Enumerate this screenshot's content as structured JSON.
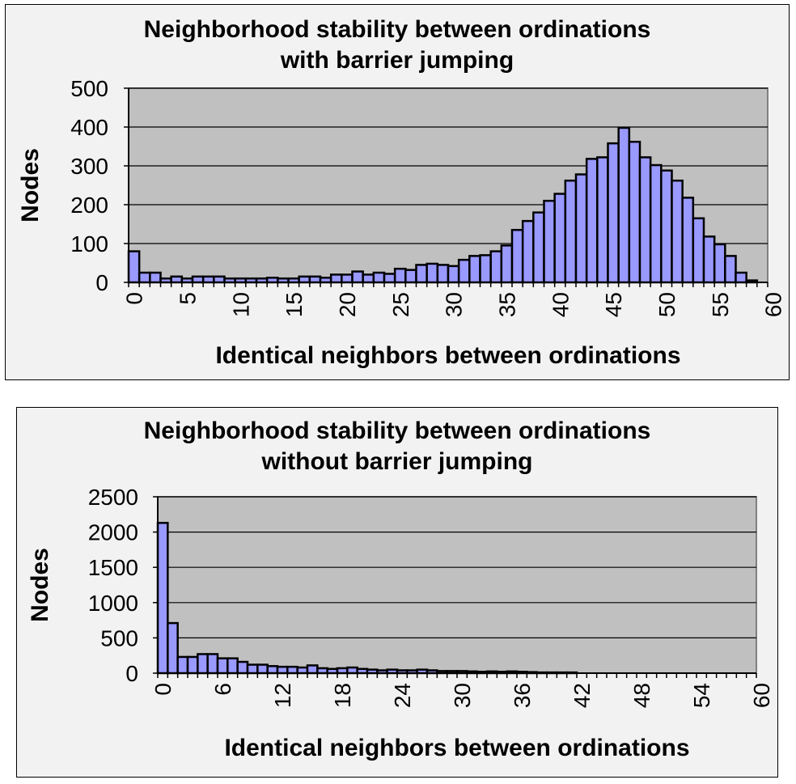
{
  "chart_data": [
    {
      "type": "bar",
      "title_line1": "Neighborhood stability between ordinations",
      "title_line2": "with barrier jumping",
      "xlabel": "Identical neighbors between ordinations",
      "ylabel": "Nodes",
      "ylim": [
        0,
        500
      ],
      "yticks": [
        "0",
        "100",
        "200",
        "300",
        "400",
        "500"
      ],
      "xticks": [
        "0",
        "5",
        "10",
        "15",
        "20",
        "25",
        "30",
        "35",
        "40",
        "45",
        "50",
        "55",
        "60"
      ],
      "xlim": [
        0,
        60
      ],
      "grid": "horizontal",
      "colors": {
        "bar": "#9999ff",
        "plot_bg": "#c0c0c0",
        "page_bg": "#f2f2f2"
      },
      "x": [
        0,
        1,
        2,
        3,
        4,
        5,
        6,
        7,
        8,
        9,
        10,
        11,
        12,
        13,
        14,
        15,
        16,
        17,
        18,
        19,
        20,
        21,
        22,
        23,
        24,
        25,
        26,
        27,
        28,
        29,
        30,
        31,
        32,
        33,
        34,
        35,
        36,
        37,
        38,
        39,
        40,
        41,
        42,
        43,
        44,
        45,
        46,
        47,
        48,
        49,
        50,
        51,
        52,
        53,
        54,
        55,
        56,
        57,
        58
      ],
      "values": [
        80,
        25,
        25,
        10,
        15,
        10,
        15,
        15,
        15,
        10,
        10,
        10,
        10,
        12,
        10,
        10,
        15,
        15,
        12,
        20,
        20,
        28,
        20,
        25,
        22,
        35,
        32,
        45,
        48,
        45,
        42,
        58,
        68,
        70,
        80,
        95,
        135,
        158,
        180,
        210,
        228,
        262,
        278,
        318,
        322,
        358,
        398,
        362,
        322,
        302,
        288,
        262,
        218,
        165,
        118,
        98,
        68,
        25,
        5
      ]
    },
    {
      "type": "bar",
      "title_line1": "Neighborhood stability between ordinations",
      "title_line2": "without barrier jumping",
      "xlabel": "Identical neighbors between ordinations",
      "ylabel": "Nodes",
      "ylim": [
        0,
        2500
      ],
      "yticks": [
        "0",
        "500",
        "1000",
        "1500",
        "2000",
        "2500"
      ],
      "xticks": [
        "0",
        "6",
        "12",
        "18",
        "24",
        "30",
        "36",
        "42",
        "48",
        "54",
        "60"
      ],
      "xlim": [
        0,
        60
      ],
      "grid": "horizontal",
      "colors": {
        "bar": "#9999ff",
        "plot_bg": "#c0c0c0",
        "page_bg": "#f2f2f2"
      },
      "x": [
        0,
        1,
        2,
        3,
        4,
        5,
        6,
        7,
        8,
        9,
        10,
        11,
        12,
        13,
        14,
        15,
        16,
        17,
        18,
        19,
        20,
        21,
        22,
        23,
        24,
        25,
        26,
        27,
        28,
        29,
        30,
        31,
        32,
        33,
        34,
        35,
        36,
        37,
        38,
        39,
        40,
        41
      ],
      "values": [
        2130,
        710,
        230,
        230,
        270,
        270,
        210,
        210,
        160,
        120,
        120,
        100,
        90,
        90,
        80,
        110,
        70,
        60,
        70,
        80,
        60,
        50,
        40,
        50,
        40,
        40,
        50,
        40,
        30,
        30,
        30,
        25,
        20,
        25,
        20,
        25,
        20,
        15,
        10,
        10,
        10,
        10
      ]
    }
  ]
}
